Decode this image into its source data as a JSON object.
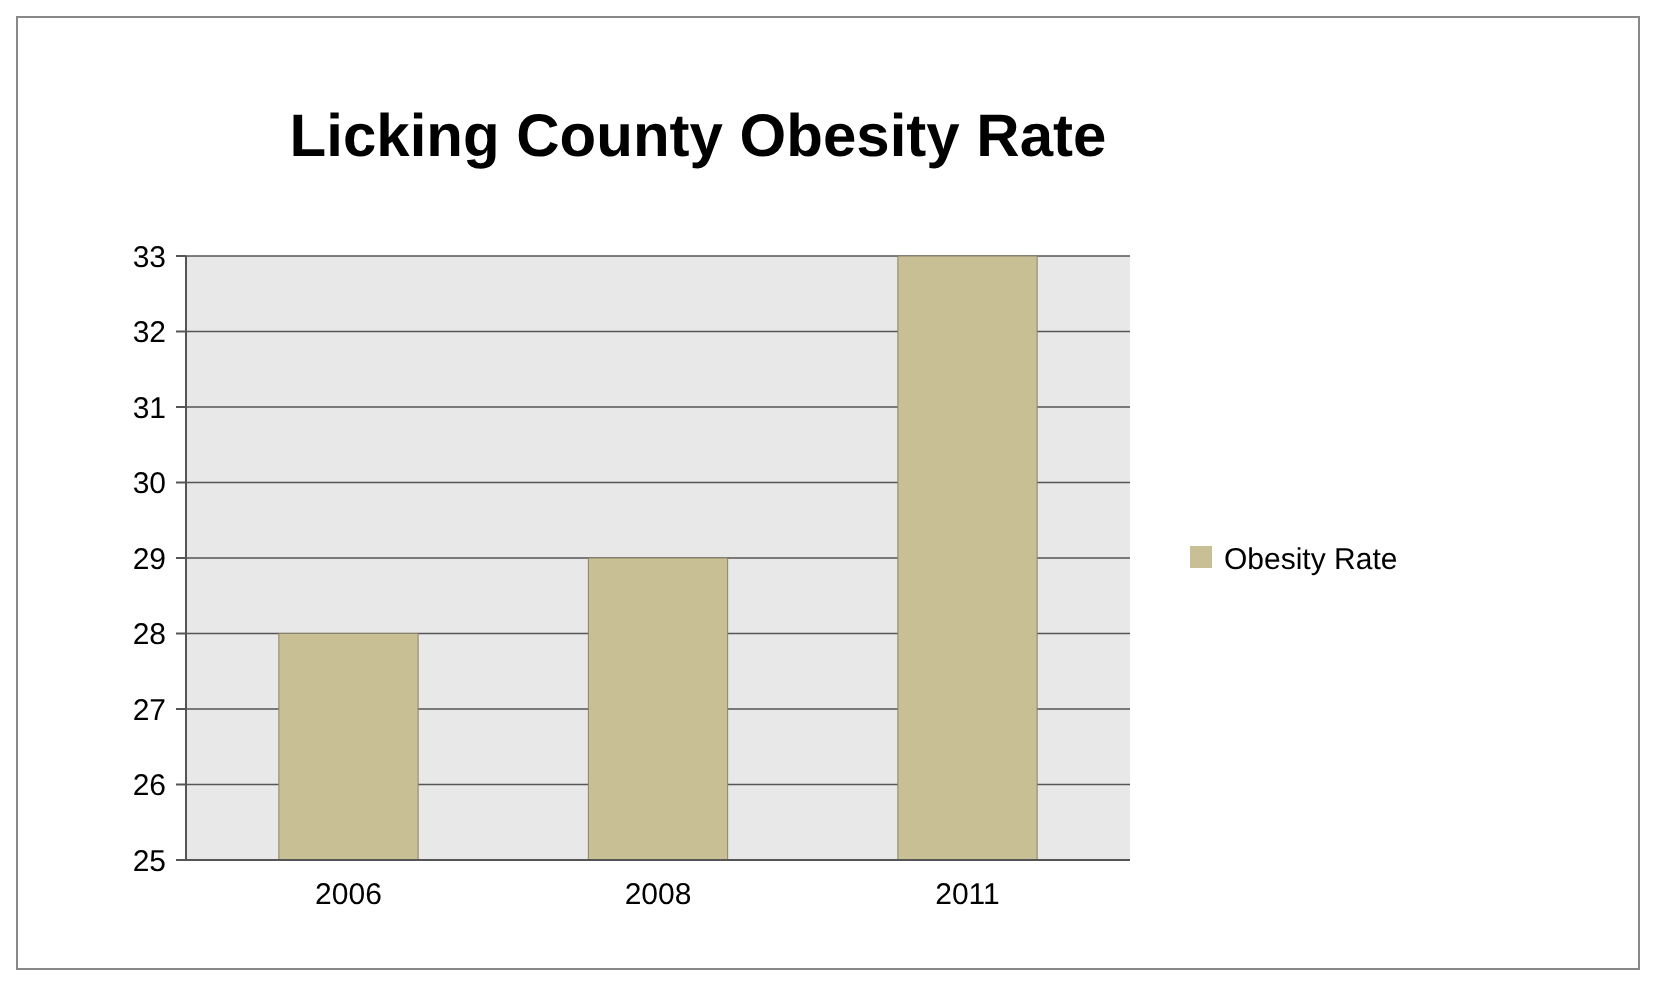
{
  "chart_data": {
    "type": "bar",
    "title": "Licking County Obesity Rate",
    "categories": [
      "2006",
      "2008",
      "2011"
    ],
    "series": [
      {
        "name": "Obesity Rate",
        "color": "#c9bf94",
        "values": [
          28,
          29,
          33
        ]
      }
    ],
    "ylim": [
      25,
      33
    ],
    "yticks": [
      25,
      26,
      27,
      28,
      29,
      30,
      31,
      32,
      33
    ],
    "grid": "y",
    "legend": "right"
  }
}
